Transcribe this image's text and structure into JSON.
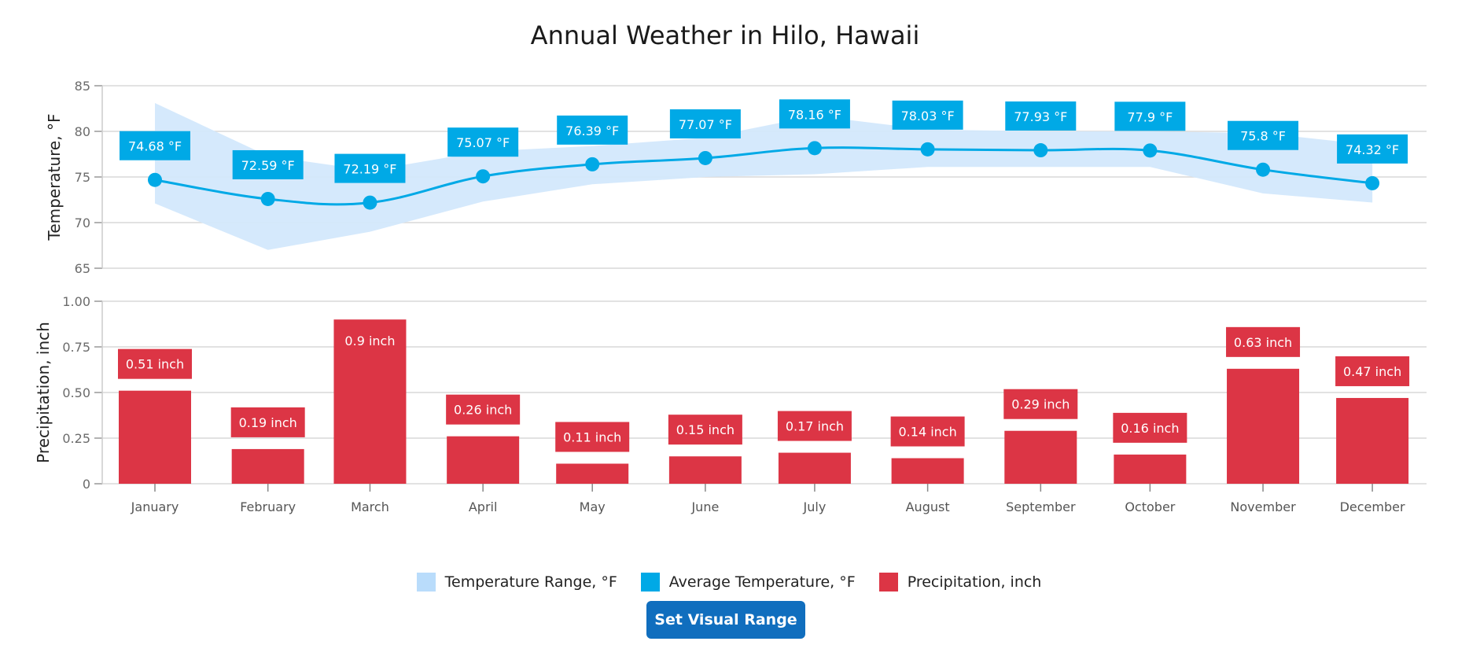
{
  "chart_data": [
    {
      "type": "area+line",
      "title": "Annual Weather in Hilo, Hawaii",
      "xlabel": "",
      "ylabel": "Temperature, °F",
      "ylim": [
        65,
        85
      ],
      "yticks": [
        "65",
        "70",
        "75",
        "80",
        "85"
      ],
      "ytick_values": [
        65,
        70,
        75,
        80,
        85
      ],
      "grid": true,
      "categories": [
        "January",
        "February",
        "March",
        "April",
        "May",
        "June",
        "July",
        "August",
        "September",
        "October",
        "November",
        "December"
      ],
      "series": [
        {
          "name": "Temperature Range, °F",
          "type": "range-area",
          "high": [
            83.1,
            77.3,
            75.7,
            77.8,
            78.4,
            79.3,
            81.7,
            80.2,
            80.0,
            80.0,
            79.8,
            78.5
          ],
          "low": [
            72.1,
            67.0,
            69.0,
            72.3,
            74.2,
            75.0,
            75.3,
            76.1,
            76.1,
            76.1,
            73.2,
            72.2
          ]
        },
        {
          "name": "Average Temperature, °F",
          "type": "spline",
          "values": [
            74.68,
            72.59,
            72.19,
            75.07,
            76.39,
            77.07,
            78.16,
            78.03,
            77.93,
            77.9,
            75.8,
            74.32
          ],
          "labels": [
            "74.68 °F",
            "72.59 °F",
            "72.19 °F",
            "75.07 °F",
            "76.39 °F",
            "77.07 °F",
            "78.16 °F",
            "78.03 °F",
            "77.93 °F",
            "77.9 °F",
            "75.8 °F",
            "74.32 °F"
          ]
        }
      ]
    },
    {
      "type": "bar",
      "xlabel": "",
      "ylabel": "Precipitation, inch",
      "ylim": [
        0,
        1
      ],
      "yticks": [
        "0",
        "0.25",
        "0.50",
        "0.75",
        "1.00"
      ],
      "ytick_values": [
        0,
        0.25,
        0.5,
        0.75,
        1.0
      ],
      "grid": true,
      "categories": [
        "January",
        "February",
        "March",
        "April",
        "May",
        "June",
        "July",
        "August",
        "September",
        "October",
        "November",
        "December"
      ],
      "series": [
        {
          "name": "Precipitation, inch",
          "values": [
            0.51,
            0.19,
            0.9,
            0.26,
            0.11,
            0.15,
            0.17,
            0.14,
            0.29,
            0.16,
            0.63,
            0.47
          ],
          "labels": [
            "0.51 inch",
            "0.19 inch",
            "0.9 inch",
            "0.26 inch",
            "0.11 inch",
            "0.15 inch",
            "0.17 inch",
            "0.14 inch",
            "0.29 inch",
            "0.16 inch",
            "0.63 inch",
            "0.47 inch"
          ]
        }
      ]
    }
  ],
  "legend": {
    "placement": "bottom-center",
    "items": [
      {
        "label": "Temperature Range, °F",
        "color": "#b9dcfb"
      },
      {
        "label": "Average Temperature, °F",
        "color": "#00a9e6"
      },
      {
        "label": "Precipitation, inch",
        "color": "#dc3545"
      }
    ]
  },
  "colors": {
    "range_fill": "#d3e8fc",
    "avg_line": "#00a9e6",
    "bar": "#dc3545",
    "grid": "#d9d9d9",
    "button": "#106ebe"
  },
  "controls": {
    "set_visual_range_label": "Set Visual Range"
  }
}
